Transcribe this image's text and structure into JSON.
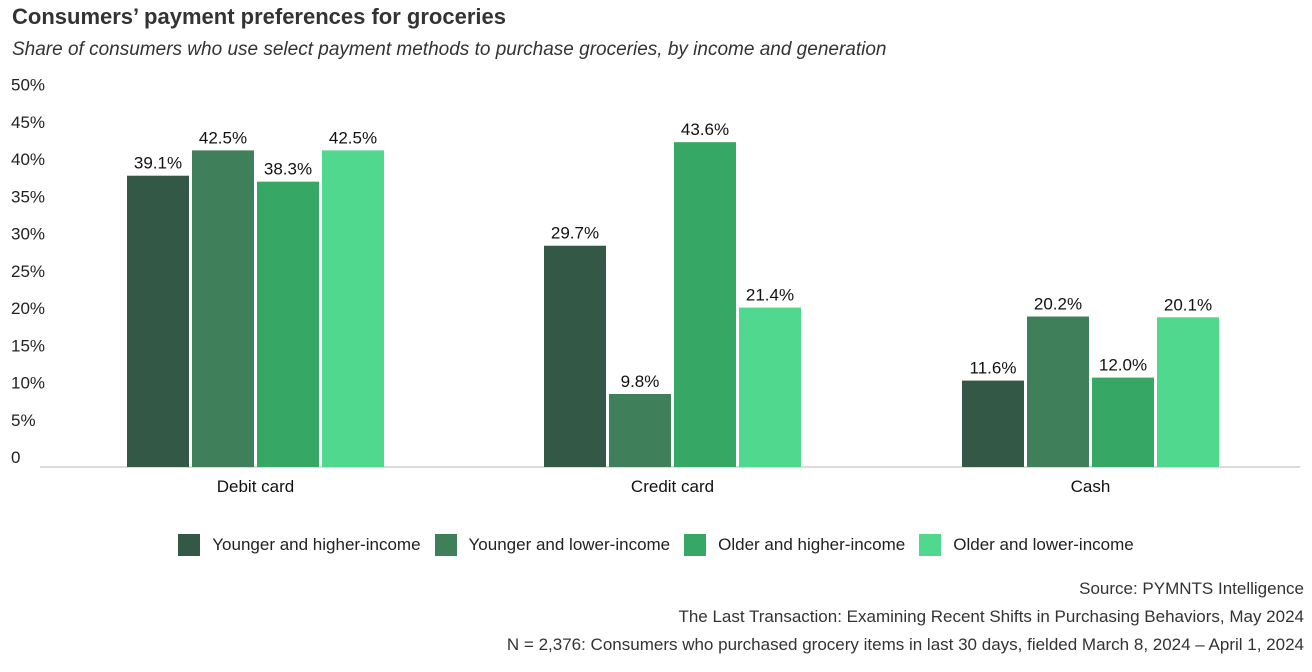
{
  "title": "Consumers’ payment preferences for groceries",
  "subtitle": "Share of consumers who use select payment methods to purchase groceries, by income and generation",
  "chart_data": {
    "type": "bar",
    "categories": [
      "Debit card",
      "Credit card",
      "Cash"
    ],
    "series": [
      {
        "name": "Younger and higher-income",
        "color": "#335845",
        "values": [
          39.1,
          29.7,
          11.6
        ],
        "labels": [
          "39.1%",
          "29.7%",
          "11.6%"
        ]
      },
      {
        "name": "Younger and lower-income",
        "color": "#3f805a",
        "values": [
          42.5,
          9.8,
          20.2
        ],
        "labels": [
          "42.5%",
          "9.8%",
          "20.2%"
        ]
      },
      {
        "name": "Older and higher-income",
        "color": "#37a765",
        "values": [
          38.3,
          43.6,
          12.0
        ],
        "labels": [
          "38.3%",
          "43.6%",
          "12.0%"
        ]
      },
      {
        "name": "Older and lower-income",
        "color": "#50d88f",
        "values": [
          42.5,
          21.4,
          20.1
        ],
        "labels": [
          "42.5%",
          "21.4%",
          "20.1%"
        ]
      }
    ],
    "ylim": [
      0,
      50
    ],
    "yticks": [
      "0",
      "5%",
      "10%",
      "15%",
      "20%",
      "25%",
      "30%",
      "35%",
      "40%",
      "45%",
      "50%"
    ],
    "grid": false,
    "legend": "bottom"
  },
  "source": {
    "line1": "Source: PYMNTS Intelligence",
    "line2": "The Last Transaction: Examining Recent Shifts in Purchasing Behaviors, May 2024",
    "line3": "N = 2,376: Consumers who purchased grocery items in last 30 days, fielded March 8, 2024 – April 1, 2024"
  }
}
